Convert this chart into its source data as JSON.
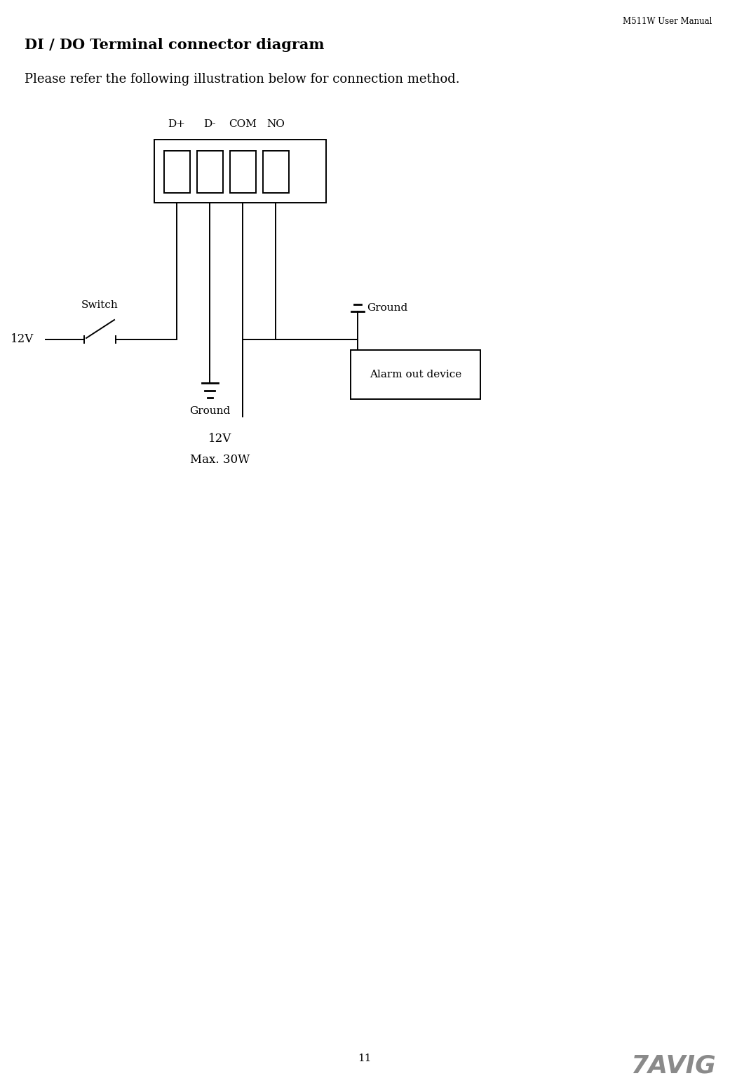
{
  "page_header": "M511W User Manual",
  "title": "DI / DO Terminal connector diagram",
  "subtitle": "Please refer the following illustration below for connection method.",
  "connector_labels": [
    "D+",
    "D-",
    "COM",
    "NO"
  ],
  "left_label_switch": "Switch",
  "left_label_12v": "12V",
  "bottom_label_ground": "Ground",
  "bottom_label_12v": "12V",
  "bottom_label_max": "Max. 30W",
  "right_label_ground": "Ground",
  "alarm_box_label": "Alarm out device",
  "page_number": "11",
  "bg_color": "#ffffff",
  "line_color": "#000000",
  "text_color": "#000000"
}
